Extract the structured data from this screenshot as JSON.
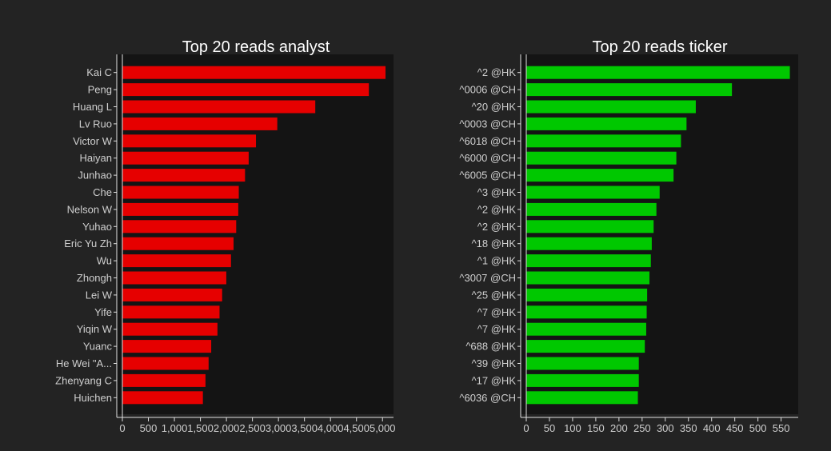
{
  "chart_data": [
    {
      "type": "bar",
      "orientation": "horizontal",
      "title": "Top 20 reads analyst",
      "categories": [
        "Kai C",
        "Peng",
        "Huang L",
        "Lv Ruo",
        "Victor W",
        "Haiyan",
        "Junhao",
        "Che",
        "Nelson W",
        "Yuhao",
        "Eric Yu Zh",
        "Wu",
        "Zhongh",
        "Lei W",
        "Yife",
        "Yiqin W",
        "Yuanc",
        "He Wei \"A...",
        "Zhenyang C",
        "Huichen"
      ],
      "values": [
        5050,
        4730,
        3700,
        2970,
        2560,
        2420,
        2350,
        2230,
        2220,
        2180,
        2130,
        2080,
        1990,
        1910,
        1860,
        1820,
        1700,
        1650,
        1590,
        1540
      ],
      "xlim": [
        0,
        5150
      ],
      "xticks": [
        "0",
        "500",
        "1,000",
        "1,500",
        "2,000",
        "2,500",
        "3,000",
        "3,500",
        "4,000",
        "4,500",
        "5,000"
      ],
      "xtick_values": [
        0,
        500,
        1000,
        1500,
        2000,
        2500,
        3000,
        3500,
        4000,
        4500,
        5000
      ],
      "color": "#e60000",
      "grid": false
    },
    {
      "type": "bar",
      "orientation": "horizontal",
      "title": "Top 20 reads ticker",
      "categories": [
        "^2  @HK",
        "^0006  @CH",
        "^20  @HK",
        "^0003  @CH",
        "^6018  @CH",
        "^6000  @CH",
        "^6005  @CH",
        "^3  @HK",
        "^2  @HK",
        "^2  @HK",
        "^18  @HK",
        "^1  @HK",
        "^3007  @CH",
        "^25  @HK",
        "^7  @HK",
        "^7  @HK",
        "^688  @HK",
        "^39  @HK",
        "^17  @HK",
        "^6036  @CH"
      ],
      "values": [
        568,
        443,
        365,
        345,
        333,
        323,
        317,
        287,
        280,
        274,
        270,
        268,
        265,
        260,
        259,
        258,
        255,
        242,
        242,
        240
      ],
      "xlim": [
        0,
        580
      ],
      "xticks": [
        "0",
        "50",
        "100",
        "150",
        "200",
        "250",
        "300",
        "350",
        "400",
        "450",
        "500",
        "550"
      ],
      "xtick_values": [
        0,
        50,
        100,
        150,
        200,
        250,
        300,
        350,
        400,
        450,
        500,
        550
      ],
      "color": "#00c800",
      "grid": false
    }
  ],
  "colors": {
    "page_background": "#232323",
    "plot_background": "#141414",
    "text": "#cfcfcf",
    "title": "#ffffff",
    "axis": "#e0e0e0"
  }
}
